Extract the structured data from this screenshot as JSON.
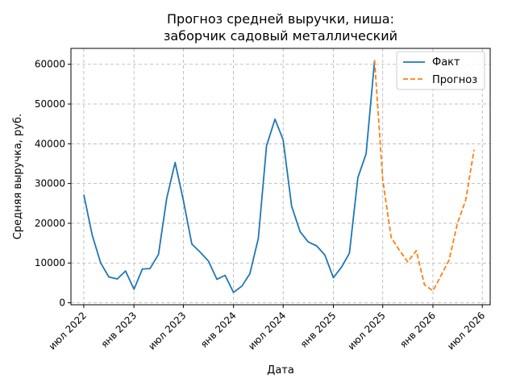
{
  "chart_data": {
    "type": "line",
    "title_lines": [
      "Прогноз средней выручки, ниша:",
      "заборчик садовый металлический"
    ],
    "xlabel": "Дата",
    "ylabel": "Средняя выручка, руб.",
    "xlim": [
      "2022-05-15",
      "2026-07-30"
    ],
    "ylim": [
      -500,
      64000
    ],
    "grid": true,
    "legend_position": "top-right",
    "x_ticks": [
      {
        "date": "2022-07-01",
        "label": "июл 2022"
      },
      {
        "date": "2023-01-01",
        "label": "янв 2023"
      },
      {
        "date": "2023-07-01",
        "label": "июл 2023"
      },
      {
        "date": "2024-01-01",
        "label": "янв 2024"
      },
      {
        "date": "2024-07-01",
        "label": "июл 2024"
      },
      {
        "date": "2025-01-01",
        "label": "янв 2025"
      },
      {
        "date": "2025-07-01",
        "label": "июл 2025"
      },
      {
        "date": "2026-01-01",
        "label": "янв 2026"
      },
      {
        "date": "2026-07-01",
        "label": "июл 2026"
      }
    ],
    "y_ticks": [
      {
        "value": 0,
        "label": "0"
      },
      {
        "value": 10000,
        "label": "10000"
      },
      {
        "value": 20000,
        "label": "20000"
      },
      {
        "value": 30000,
        "label": "30000"
      },
      {
        "value": 40000,
        "label": "40000"
      },
      {
        "value": 50000,
        "label": "50000"
      },
      {
        "value": 60000,
        "label": "60000"
      }
    ],
    "series": [
      {
        "name": "Факт",
        "color": "#1f77b4",
        "style": "solid",
        "x": [
          "2022-07-01",
          "2022-08-01",
          "2022-09-01",
          "2022-10-01",
          "2022-11-01",
          "2022-12-01",
          "2023-01-01",
          "2023-02-01",
          "2023-03-01",
          "2023-04-01",
          "2023-05-01",
          "2023-06-01",
          "2023-07-01",
          "2023-08-01",
          "2023-09-01",
          "2023-10-01",
          "2023-11-01",
          "2023-12-01",
          "2024-01-01",
          "2024-02-01",
          "2024-03-01",
          "2024-04-01",
          "2024-05-01",
          "2024-06-01",
          "2024-07-01",
          "2024-08-01",
          "2024-09-01",
          "2024-10-01",
          "2024-11-01",
          "2024-12-01",
          "2025-01-01",
          "2025-02-01",
          "2025-03-01",
          "2025-04-01",
          "2025-05-01",
          "2025-06-01"
        ],
        "values": [
          27200,
          17000,
          10000,
          6500,
          6000,
          8000,
          3400,
          8500,
          8600,
          12200,
          26300,
          35300,
          25800,
          14800,
          12700,
          10500,
          5900,
          6900,
          2600,
          4200,
          7300,
          16200,
          39500,
          46200,
          41000,
          24300,
          17900,
          15300,
          14300,
          12000,
          6300,
          9100,
          12500,
          31500,
          37500,
          61000
        ]
      },
      {
        "name": "Прогноз",
        "color": "#ff7f0e",
        "style": "dashed",
        "x": [
          "2025-06-01",
          "2025-07-01",
          "2025-08-01",
          "2025-09-01",
          "2025-10-01",
          "2025-11-01",
          "2025-12-01",
          "2026-01-01",
          "2026-02-01",
          "2026-03-01",
          "2026-04-01",
          "2026-05-01",
          "2026-06-01"
        ],
        "values": [
          61000,
          31000,
          16400,
          13100,
          10300,
          13100,
          4500,
          3000,
          7000,
          10700,
          20000,
          25800,
          38500
        ]
      }
    ]
  }
}
